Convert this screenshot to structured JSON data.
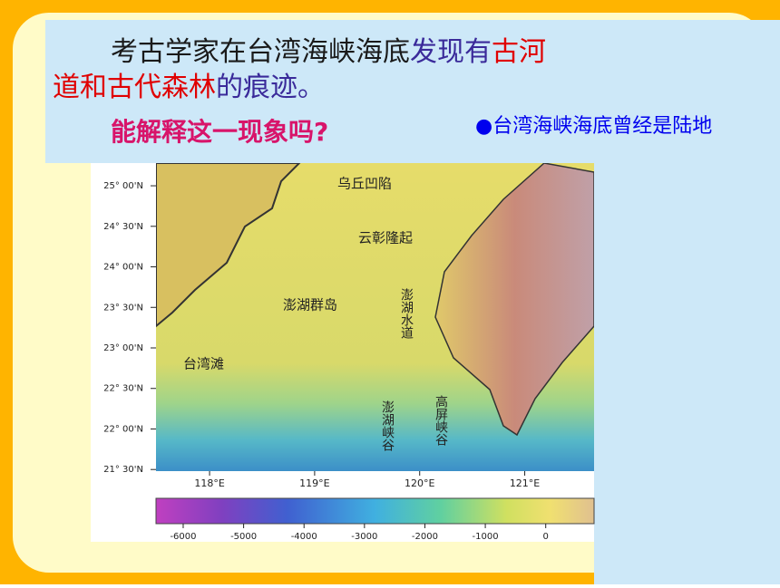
{
  "slide": {
    "intro_line1": [
      {
        "text": "考古学家在",
        "color": "#1a1a1a"
      },
      {
        "text": "台湾海峡海底",
        "color": "#1a1a1a"
      },
      {
        "text": "发现有",
        "color": "#3a2a9a"
      },
      {
        "text": "古河",
        "color": "#e00000"
      }
    ],
    "intro_line2": [
      {
        "text": "道和古代森林",
        "color": "#e00000"
      },
      {
        "text": "的痕迹。",
        "color": "#3a2a9a"
      }
    ],
    "question": "能解释这一现象吗?",
    "answer": "●台湾海峡海底曾经是陆地",
    "map": {
      "xlim": [
        117.49,
        121.66
      ],
      "ylim": [
        21.48,
        25.28
      ],
      "xticks": [
        {
          "value": 118,
          "label": "118°E"
        },
        {
          "value": 119,
          "label": "119°E"
        },
        {
          "value": 120,
          "label": "120°E"
        },
        {
          "value": 121,
          "label": "121°E"
        }
      ],
      "yticks": [
        {
          "value": 25,
          "label": "25° 00'N"
        },
        {
          "value": 24.5,
          "label": "24° 30'N"
        },
        {
          "value": 24,
          "label": "24° 00'N"
        },
        {
          "value": 23.5,
          "label": "23° 30'N"
        },
        {
          "value": 23,
          "label": "23° 00'N"
        },
        {
          "value": 22.5,
          "label": "22° 30'N"
        },
        {
          "value": 22,
          "label": "22° 00'N"
        },
        {
          "value": 21.5,
          "label": "21° 30'N"
        }
      ],
      "colorbar_range": [
        -6450,
        800
      ],
      "colorbar_ticks": [
        -6000,
        -5000,
        -4000,
        -3000,
        -2000,
        -1000,
        0
      ],
      "labels": [
        "乌丘凹陷",
        "云彰隆起",
        "澎湖群岛",
        "澎湖水道",
        "台湾滩",
        "澎湖峡谷",
        "高屏峡谷"
      ]
    }
  }
}
